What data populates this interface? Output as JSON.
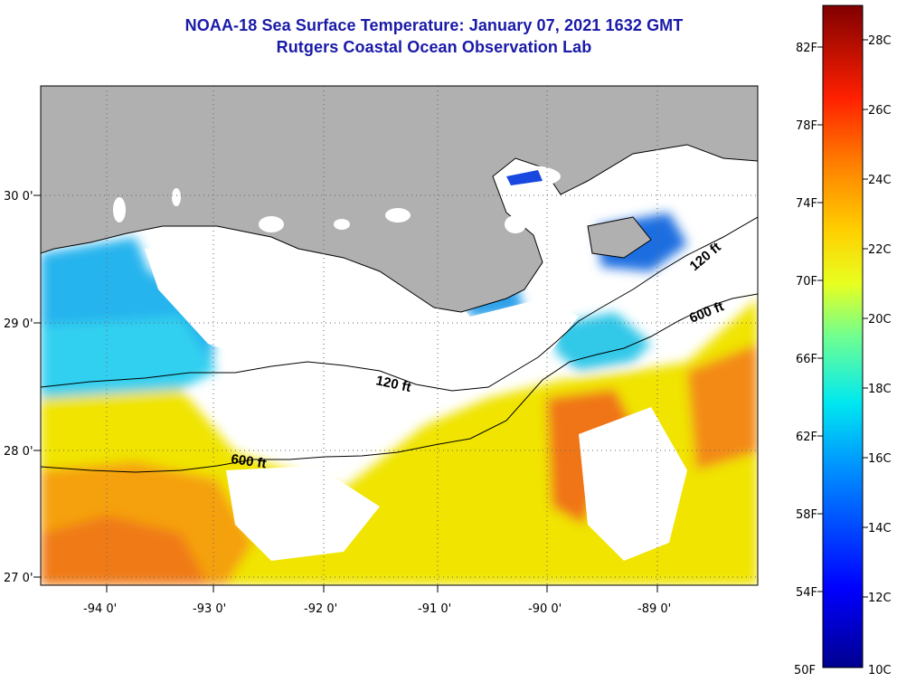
{
  "header": {
    "title": "NOAA-18 Sea Surface Temperature:  January 07, 2021 1632 GMT",
    "subtitle": "Rutgers Coastal Ocean Observation Lab"
  },
  "map": {
    "lat_labels": [
      "30 0'",
      "29 0'",
      "28 0'",
      "27 0'"
    ],
    "lon_labels": [
      "-94 0'",
      "-93 0'",
      "-92 0'",
      "-91 0'",
      "-90 0'",
      "-89 0'"
    ],
    "contour_labels": [
      "120 ft",
      "600 ft",
      "120 ft",
      "600 ft"
    ],
    "colors": {
      "land": "#b0b0b0",
      "cloud": "#ffffff",
      "cold": "#2060e0",
      "cool": "#30c8f0",
      "warm": "#f0e000",
      "hot": "#f07010"
    }
  },
  "colorbar": {
    "f_labels": [
      "82F",
      "78F",
      "74F",
      "70F",
      "66F",
      "62F",
      "58F",
      "54F",
      "50F"
    ],
    "c_labels": [
      "28C",
      "26C",
      "24C",
      "22C",
      "20C",
      "18C",
      "16C",
      "14C",
      "12C",
      "10C"
    ],
    "range_c": [
      10,
      29
    ]
  }
}
